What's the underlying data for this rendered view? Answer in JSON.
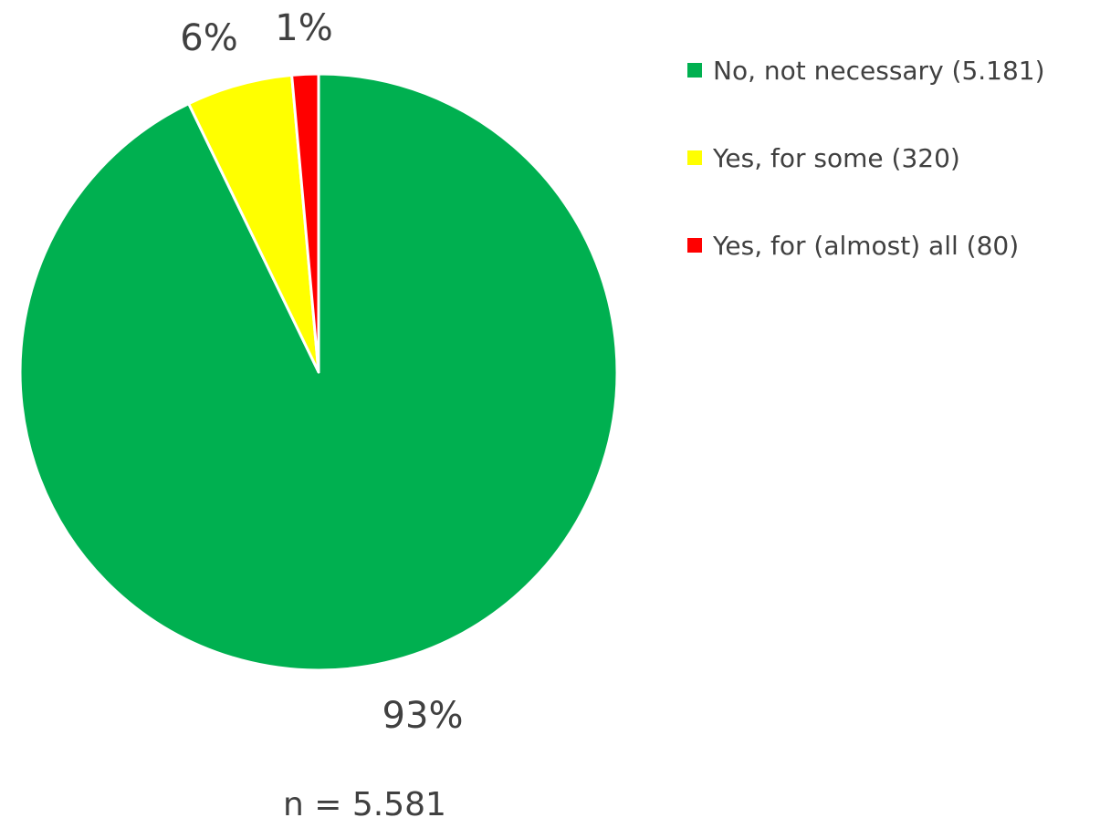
{
  "chart_data": {
    "type": "pie",
    "slices": [
      {
        "label": "No, not necessary  (5.181)",
        "value": 5181,
        "percent_label": "93%",
        "color": "#00B050"
      },
      {
        "label": "Yes, for some (320)",
        "value": 320,
        "percent_label": "6%",
        "color": "#FFFF00"
      },
      {
        "label": "Yes, for (almost) all  (80)",
        "value": 80,
        "percent_label": "1%",
        "color": "#FF0000"
      }
    ],
    "start_angle_deg": 0,
    "direction": "clockwise",
    "legend_position": "right",
    "note": "n = 5.581"
  }
}
